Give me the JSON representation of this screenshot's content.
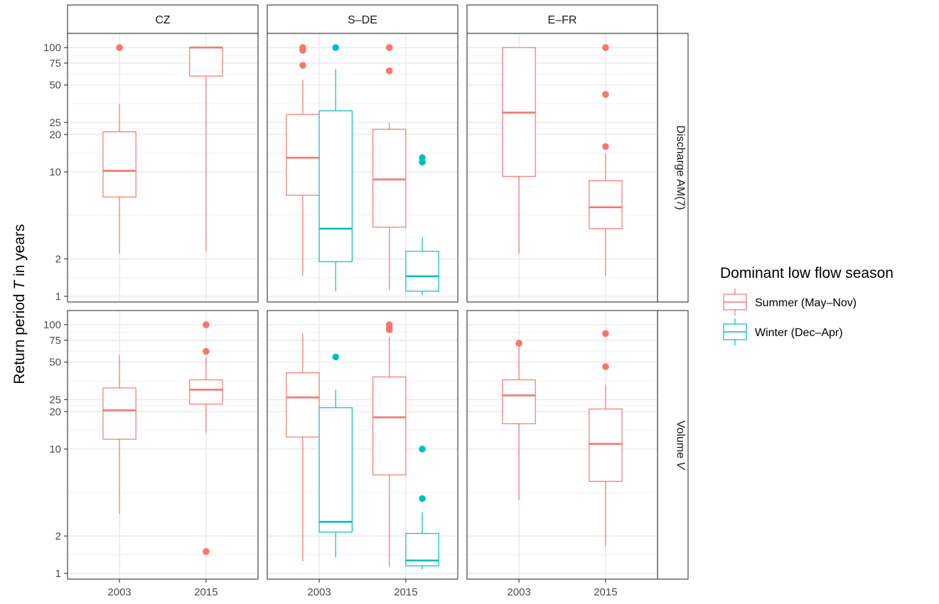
{
  "chart_data": {
    "type": "boxplot",
    "ylabel_prefix": "Return period ",
    "ylabel_var": "T",
    "ylabel_suffix": " in years",
    "y_scale": "log",
    "y_ticks": [
      1,
      2,
      10,
      20,
      25,
      50,
      75,
      100
    ],
    "ylim": [
      0.9,
      130
    ],
    "x_categories": [
      "2003",
      "2015"
    ],
    "columns": [
      "CZ",
      "S–DE",
      "E–FR"
    ],
    "rows": [
      "Discharge AM(7)",
      "Volume V"
    ],
    "legend": {
      "title": "Dominant low flow season",
      "placement": "right",
      "entries": [
        {
          "label": "Summer (May–Nov)",
          "color": "#F8766D"
        },
        {
          "label": "Winter (Dec–Apr)",
          "color": "#00BFC4"
        }
      ]
    },
    "colors": {
      "summer": "#F8766D",
      "winter": "#00BFC4"
    },
    "panels": [
      {
        "column": "CZ",
        "row": "Discharge AM(7)",
        "boxes": [
          {
            "year": "2003",
            "season": "summer",
            "min": 2.2,
            "q1": 6.3,
            "median": 10.2,
            "q3": 21,
            "max": 35,
            "outliers": [
              100
            ]
          },
          {
            "year": "2015",
            "season": "summer",
            "min": 2.3,
            "q1": 59,
            "median": 100,
            "q3": 100,
            "max": 100,
            "outliers": []
          }
        ]
      },
      {
        "column": "S–DE",
        "row": "Discharge AM(7)",
        "boxes": [
          {
            "year": "2003",
            "season": "summer",
            "min": 1.45,
            "q1": 6.5,
            "median": 13,
            "q3": 29,
            "max": 55,
            "outliers": [
              72,
              95,
              100
            ]
          },
          {
            "year": "2003",
            "season": "winter",
            "min": 1.1,
            "q1": 1.9,
            "median": 3.5,
            "q3": 31,
            "max": 67,
            "outliers": [
              100
            ]
          },
          {
            "year": "2015",
            "season": "summer",
            "min": 1.12,
            "q1": 3.6,
            "median": 8.7,
            "q3": 22,
            "max": 25,
            "outliers": [
              65,
              100
            ]
          },
          {
            "year": "2015",
            "season": "winter",
            "min": 1.02,
            "q1": 1.1,
            "median": 1.45,
            "q3": 2.3,
            "max": 3.0,
            "outliers": [
              12,
              13
            ]
          }
        ]
      },
      {
        "column": "E–FR",
        "row": "Discharge AM(7)",
        "boxes": [
          {
            "year": "2003",
            "season": "summer",
            "min": 2.2,
            "q1": 9.2,
            "median": 30,
            "q3": 100,
            "max": 100,
            "outliers": []
          },
          {
            "year": "2015",
            "season": "summer",
            "min": 1.45,
            "q1": 3.5,
            "median": 5.2,
            "q3": 8.5,
            "max": 14,
            "outliers": [
              16,
              42,
              100
            ]
          }
        ]
      },
      {
        "column": "CZ",
        "row": "Volume V",
        "boxes": [
          {
            "year": "2003",
            "season": "summer",
            "min": 3.0,
            "q1": 12,
            "median": 20.5,
            "q3": 31,
            "max": 57,
            "outliers": []
          },
          {
            "year": "2015",
            "season": "summer",
            "min": 13.5,
            "q1": 23,
            "median": 30,
            "q3": 36,
            "max": 55,
            "outliers": [
              61,
              100,
              1.5
            ]
          }
        ]
      },
      {
        "column": "S–DE",
        "row": "Volume V",
        "boxes": [
          {
            "year": "2003",
            "season": "summer",
            "min": 1.25,
            "q1": 12.5,
            "median": 26,
            "q3": 41,
            "max": 85,
            "outliers": []
          },
          {
            "year": "2003",
            "season": "winter",
            "min": 1.35,
            "q1": 2.15,
            "median": 2.6,
            "q3": 21.5,
            "max": 30,
            "outliers": [
              55
            ]
          },
          {
            "year": "2015",
            "season": "summer",
            "min": 1.12,
            "q1": 6.2,
            "median": 18,
            "q3": 38,
            "max": 80,
            "outliers": [
              91,
              95,
              100
            ]
          },
          {
            "year": "2015",
            "season": "winter",
            "min": 1.08,
            "q1": 1.15,
            "median": 1.27,
            "q3": 2.1,
            "max": 3.1,
            "outliers": [
              4.0,
              10
            ]
          }
        ]
      },
      {
        "column": "E–FR",
        "row": "Volume V",
        "boxes": [
          {
            "year": "2003",
            "season": "summer",
            "min": 3.9,
            "q1": 16,
            "median": 27,
            "q3": 36,
            "max": 68,
            "outliers": [
              71
            ]
          },
          {
            "year": "2015",
            "season": "summer",
            "min": 1.65,
            "q1": 5.5,
            "median": 11,
            "q3": 21,
            "max": 33,
            "outliers": [
              46,
              85
            ]
          }
        ]
      }
    ]
  }
}
